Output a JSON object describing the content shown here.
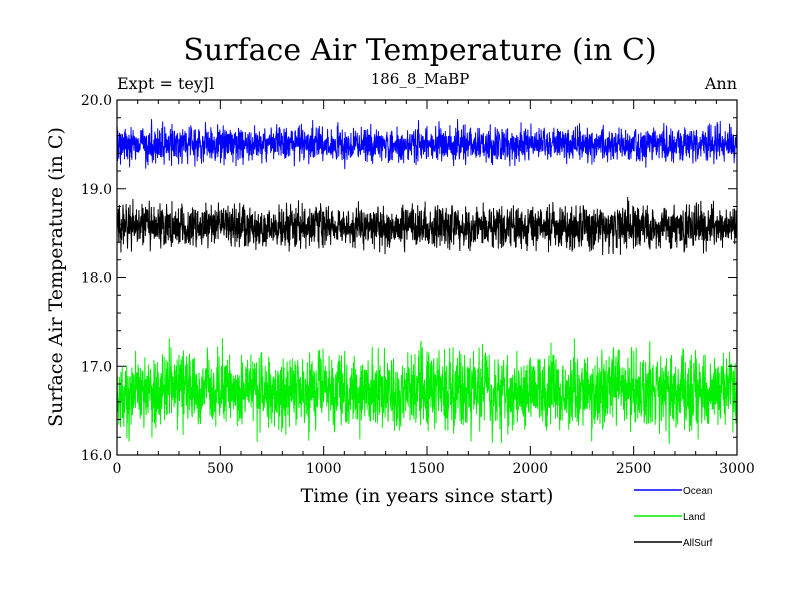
{
  "chart_data": {
    "type": "line",
    "title": "Surface Air Temperature (in C)",
    "subtitle": "186_8_MaBP",
    "left_annotation": "Expt = teyJl",
    "right_annotation": "Ann",
    "xlabel": "Time (in years since start)",
    "ylabel": "Surface Air Temperature (in C)",
    "xlim": [
      0,
      3000
    ],
    "ylim": [
      16.0,
      20.0
    ],
    "x_ticks": [
      0,
      500,
      1000,
      1500,
      2000,
      2500,
      3000
    ],
    "x_tick_labels": [
      "0",
      "500",
      "1000",
      "1500",
      "2000",
      "2500",
      "3000"
    ],
    "y_ticks": [
      16.0,
      17.0,
      18.0,
      19.0,
      20.0
    ],
    "y_tick_labels": [
      "16.0",
      "17.0",
      "18.0",
      "19.0",
      "20.0"
    ],
    "grid": false,
    "legend_position": "bottom-right",
    "series": [
      {
        "name": "Ocean",
        "color": "#0000ff",
        "mean": 19.5,
        "spread": 0.09,
        "min": 19.2,
        "max": 19.78
      },
      {
        "name": "Land",
        "color": "#00ee00",
        "mean": 16.72,
        "spread": 0.2,
        "min": 16.05,
        "max": 17.32
      },
      {
        "name": "AllSurf",
        "color": "#000000",
        "mean": 18.57,
        "spread": 0.11,
        "min": 18.14,
        "max": 18.92
      }
    ]
  }
}
